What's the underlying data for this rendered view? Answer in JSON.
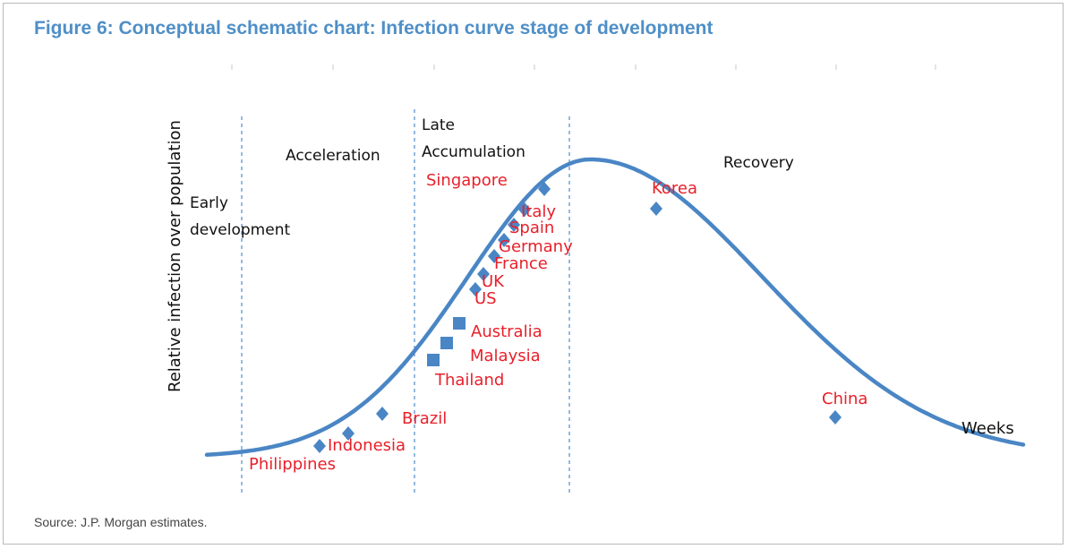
{
  "figure": {
    "title": "Figure 6: Conceptual schematic chart: Infection curve stage of development",
    "source": "Source: J.P. Morgan estimates."
  },
  "colors": {
    "title": "#4f8fc7",
    "curve": "#4a86c5",
    "country_label": "#e8202a",
    "divider": "#5b95cf"
  },
  "chart_data": {
    "type": "line",
    "title": "",
    "xlabel": "Weeks",
    "ylabel": "Relative infection over population",
    "axis_values_shown": false,
    "phases": [
      "Early development",
      "Acceleration",
      "Late Accumulation",
      "Recovery"
    ],
    "phase_lines": [
      {
        "name": "divider-early-accel"
      },
      {
        "name": "divider-accel-late"
      },
      {
        "name": "divider-late-recovery"
      }
    ],
    "curve": {
      "shape": "bell",
      "peak_week": 0.47,
      "width_left": 0.15,
      "width_right": 0.21,
      "baseline_left": 0.02,
      "baseline_right": 0.02
    },
    "points": [
      {
        "country": "Philippines",
        "week": 0.14,
        "level": 0.05,
        "marker": "diamond"
      },
      {
        "country": "Indonesia",
        "week": 0.17,
        "level": 0.09,
        "marker": "diamond"
      },
      {
        "country": "Brazil",
        "week": 0.215,
        "level": 0.18,
        "marker": "diamond"
      },
      {
        "country": "Thailand",
        "week": 0.275,
        "level": 0.37,
        "marker": "square"
      },
      {
        "country": "Malaysia",
        "week": 0.29,
        "level": 0.44,
        "marker": "square"
      },
      {
        "country": "Australia",
        "week": 0.305,
        "level": 0.51,
        "marker": "square"
      },
      {
        "country": "US",
        "week": 0.325,
        "level": 0.61,
        "marker": "diamond"
      },
      {
        "country": "UK",
        "week": 0.335,
        "level": 0.67,
        "marker": "diamond"
      },
      {
        "country": "France",
        "week": 0.35,
        "level": 0.74,
        "marker": "diamond"
      },
      {
        "country": "Germany",
        "week": 0.36,
        "level": 0.79,
        "marker": "diamond"
      },
      {
        "country": "Spain",
        "week": 0.37,
        "level": 0.84,
        "marker": "diamond"
      },
      {
        "country": "Italy",
        "week": 0.385,
        "level": 0.89,
        "marker": "diamond"
      },
      {
        "country": "Singapore",
        "week": 0.41,
        "level": 0.95,
        "marker": "diamond"
      },
      {
        "country": "Korea",
        "week": 0.55,
        "level": 0.9,
        "marker": "diamond"
      },
      {
        "country": "China",
        "week": 0.76,
        "level": 0.16,
        "marker": "diamond"
      }
    ]
  }
}
